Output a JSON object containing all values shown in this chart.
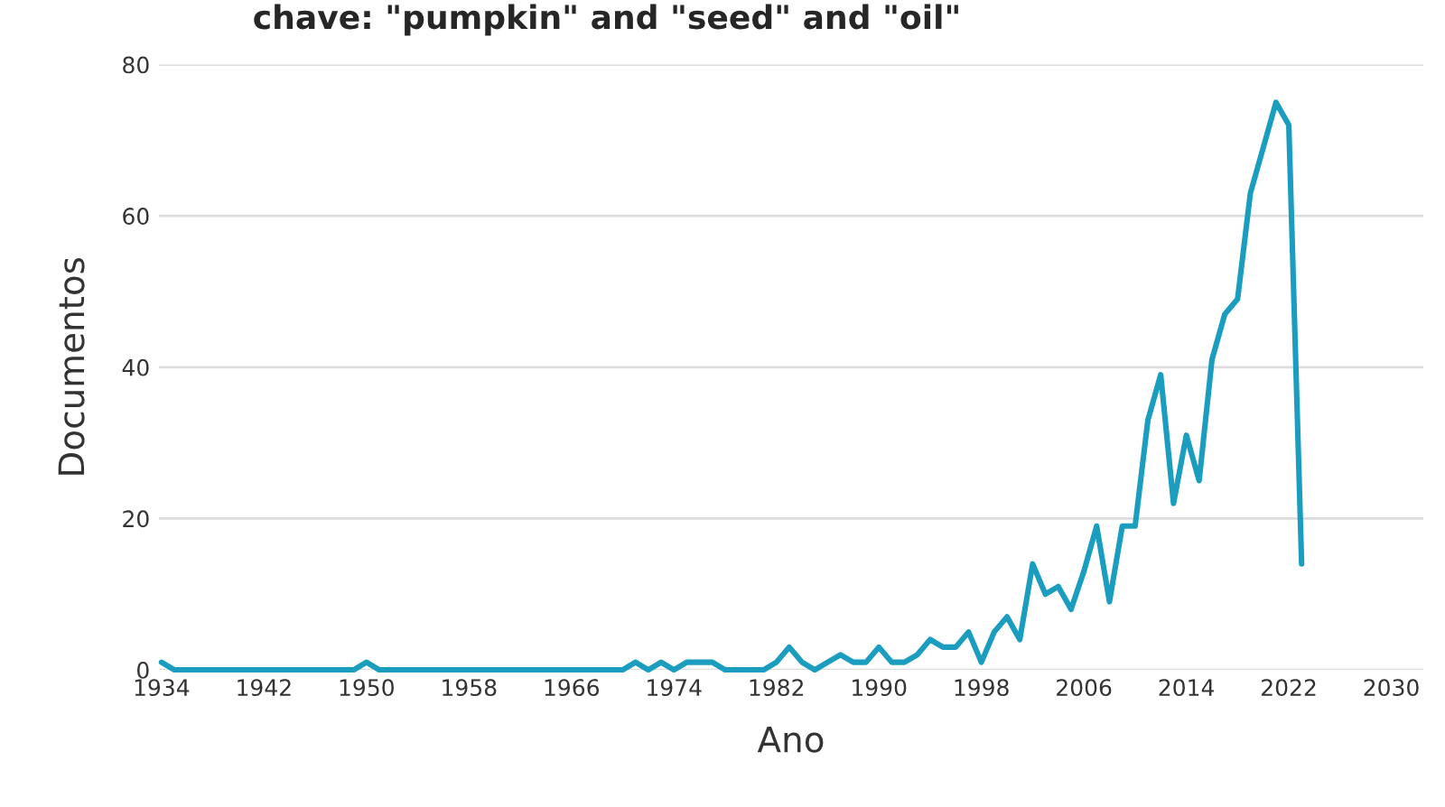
{
  "chart_data": {
    "type": "line",
    "title": "chave: \"pumpkin\" and \"seed\" and \"oil\"",
    "xlabel": "Ano",
    "ylabel": "Documentos",
    "x": [
      1934,
      1935,
      1936,
      1937,
      1938,
      1939,
      1940,
      1941,
      1942,
      1943,
      1944,
      1945,
      1946,
      1947,
      1948,
      1949,
      1950,
      1951,
      1952,
      1953,
      1954,
      1955,
      1956,
      1957,
      1958,
      1959,
      1960,
      1961,
      1962,
      1963,
      1964,
      1965,
      1966,
      1967,
      1968,
      1969,
      1970,
      1971,
      1972,
      1973,
      1974,
      1975,
      1976,
      1977,
      1978,
      1979,
      1980,
      1981,
      1982,
      1983,
      1984,
      1985,
      1986,
      1987,
      1988,
      1989,
      1990,
      1991,
      1992,
      1993,
      1994,
      1995,
      1996,
      1997,
      1998,
      1999,
      2000,
      2001,
      2002,
      2003,
      2004,
      2005,
      2006,
      2007,
      2008,
      2009,
      2010,
      2011,
      2012,
      2013,
      2014,
      2015,
      2016,
      2017,
      2018,
      2019,
      2020,
      2021,
      2022,
      2023
    ],
    "series": [
      {
        "color": "#1b9dbf",
        "values": [
          1,
          0,
          0,
          0,
          0,
          0,
          0,
          0,
          0,
          0,
          0,
          0,
          0,
          0,
          0,
          0,
          1,
          0,
          0,
          0,
          0,
          0,
          0,
          0,
          0,
          0,
          0,
          0,
          0,
          0,
          0,
          0,
          0,
          0,
          0,
          0,
          0,
          1,
          0,
          1,
          0,
          1,
          1,
          1,
          0,
          0,
          0,
          0,
          1,
          3,
          1,
          0,
          1,
          2,
          1,
          1,
          3,
          1,
          1,
          2,
          4,
          3,
          3,
          5,
          1,
          5,
          7,
          4,
          14,
          10,
          11,
          8,
          13,
          19,
          9,
          19,
          19,
          33,
          39,
          22,
          31,
          25,
          41,
          47,
          49,
          63,
          69,
          75,
          72,
          14
        ]
      }
    ],
    "xlim": [
      1933.8,
      2032.5
    ],
    "ylim": [
      0,
      80
    ],
    "xticks": [
      1934,
      1942,
      1950,
      1958,
      1966,
      1974,
      1982,
      1990,
      1998,
      2006,
      2014,
      2022,
      2030
    ],
    "yticks": [
      0,
      20,
      40,
      60,
      80
    ],
    "grid": "y",
    "marker": "none",
    "line_style": "solid",
    "legend": false
  }
}
